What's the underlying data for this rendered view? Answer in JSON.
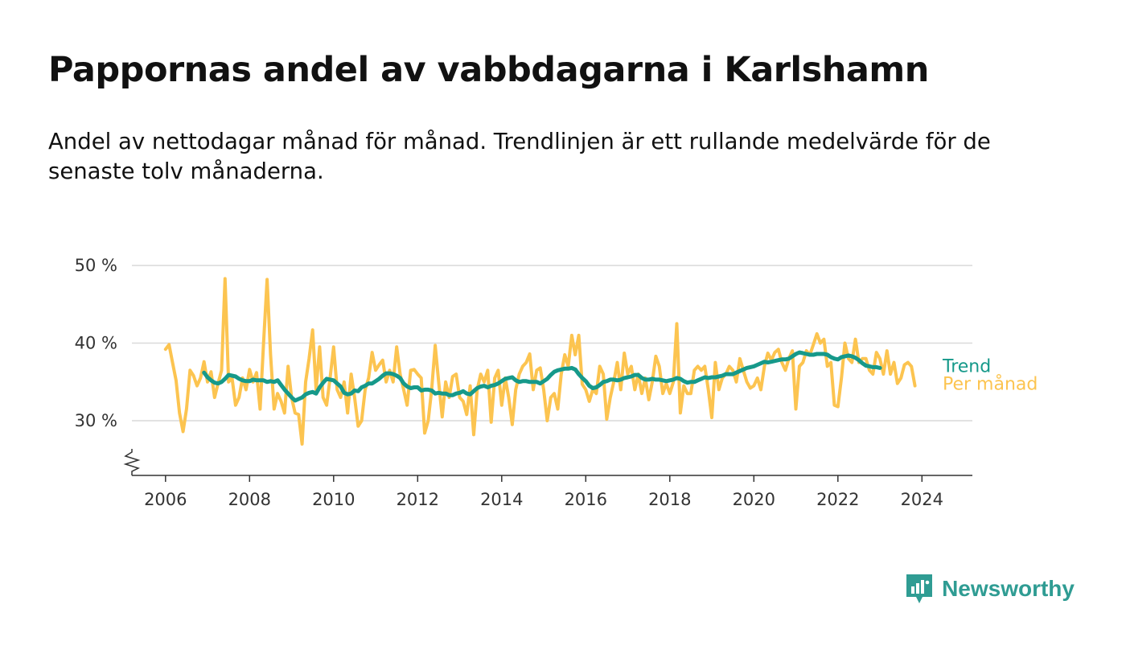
{
  "title": "Pappornas andel av vabbdagarna i Karlshamn",
  "subtitle": "Andel av nettodagar månad för månad. Trendlinjen är ett rullande medelvärde för de senaste tolv månaderna.",
  "brand": {
    "name": "Newsworthy",
    "icon": "newsworthy-logo-icon",
    "color": "#2f9c93"
  },
  "colors": {
    "trend": "#16998a",
    "monthly": "#fcc450",
    "grid": "#d9d9d9",
    "axis": "#333333"
  },
  "chart_data": {
    "type": "line",
    "title": "Pappornas andel av vabbdagarna i Karlshamn",
    "xlabel": "",
    "ylabel": "",
    "xlim": [
      2005.2,
      2025.2
    ],
    "ylim": [
      23,
      50
    ],
    "y_axis_broken": true,
    "x_ticks": [
      2006,
      2008,
      2010,
      2012,
      2014,
      2016,
      2018,
      2020,
      2022,
      2024
    ],
    "y_ticks": [
      {
        "value": 30,
        "label": "30 %"
      },
      {
        "value": 40,
        "label": "40 %"
      },
      {
        "value": 50,
        "label": "50 %"
      }
    ],
    "series": [
      {
        "name": "Per månad",
        "color": "#fcc450",
        "x_start": 2006.0,
        "x_step": 0.083333,
        "values": [
          39.2,
          39.8,
          37.5,
          35.2,
          31.0,
          28.6,
          31.5,
          36.5,
          35.8,
          34.5,
          35.5,
          37.6,
          35.0,
          36.3,
          33.0,
          34.8,
          36.5,
          48.3,
          35.0,
          35.5,
          32.0,
          33.0,
          35.5,
          34.0,
          36.6,
          35.0,
          36.2,
          31.5,
          40.0,
          48.2,
          38.5,
          31.5,
          33.5,
          32.5,
          31.0,
          37.0,
          33.0,
          31.0,
          30.8,
          27.0,
          35.0,
          38.0,
          41.7,
          34.0,
          39.5,
          33.0,
          32.0,
          35.5,
          39.5,
          34.0,
          33.0,
          35.0,
          31.0,
          36.0,
          33.0,
          29.3,
          30.0,
          34.0,
          35.5,
          38.8,
          36.5,
          37.2,
          37.8,
          35.0,
          36.5,
          35.0,
          39.5,
          36.0,
          34.0,
          32.0,
          36.5,
          36.6,
          36.0,
          35.5,
          28.4,
          30.0,
          34.0,
          39.7,
          35.0,
          30.5,
          35.0,
          33.0,
          35.7,
          36.0,
          33.0,
          32.5,
          30.8,
          34.5,
          28.2,
          34.0,
          36.0,
          35.0,
          36.5,
          29.8,
          35.5,
          36.5,
          32.0,
          35.5,
          33.0,
          29.5,
          34.0,
          36.0,
          37.0,
          37.5,
          38.6,
          34.0,
          36.5,
          36.8,
          34.0,
          30.0,
          33.0,
          33.5,
          31.5,
          36.0,
          38.5,
          37.0,
          41.0,
          38.5,
          41.0,
          34.7,
          34.0,
          32.5,
          34.0,
          33.5,
          37.0,
          36.0,
          30.2,
          33.0,
          35.0,
          37.5,
          34.0,
          38.7,
          36.0,
          37.0,
          34.0,
          36.0,
          33.5,
          35.5,
          32.7,
          35.0,
          38.3,
          37.0,
          33.5,
          34.8,
          33.5,
          35.0,
          42.5,
          31.0,
          34.5,
          33.5,
          33.5,
          36.5,
          37.0,
          36.5,
          37.0,
          34.0,
          30.4,
          37.5,
          34.0,
          35.5,
          36.0,
          37.0,
          36.5,
          35.0,
          38.0,
          36.5,
          35.0,
          34.2,
          34.5,
          35.5,
          34.0,
          37.0,
          38.7,
          37.8,
          38.8,
          39.2,
          37.5,
          36.5,
          38.0,
          39.0,
          31.5,
          37.0,
          37.5,
          39.0,
          38.5,
          39.8,
          41.2,
          40.0,
          40.5,
          37.0,
          37.5,
          32.0,
          31.8,
          35.5,
          40.0,
          38.0,
          37.5,
          40.5,
          37.5,
          38.0,
          38.0,
          36.5,
          36.0,
          38.8,
          38.0,
          36.0,
          39.0,
          36.0,
          37.5,
          34.8,
          35.5,
          37.2,
          37.5,
          37.0,
          34.5
        ]
      },
      {
        "name": "Trend",
        "color": "#16998a",
        "x_start": 2006.917,
        "x_step": 0.083333,
        "values": [
          36.2,
          35.6,
          35.2,
          34.9,
          34.8,
          35.0,
          35.4,
          35.9,
          35.8,
          35.7,
          35.4,
          35.2,
          35.1,
          35.1,
          35.3,
          35.2,
          35.2,
          35.2,
          35.0,
          35.1,
          35.0,
          35.2,
          34.6,
          34.0,
          33.5,
          33.0,
          32.6,
          32.8,
          33.0,
          33.4,
          33.6,
          33.7,
          33.5,
          34.3,
          34.9,
          35.4,
          35.3,
          35.2,
          34.8,
          34.4,
          33.6,
          33.4,
          33.5,
          33.9,
          33.8,
          34.3,
          34.5,
          34.8,
          34.8,
          35.1,
          35.4,
          35.8,
          36.1,
          36.1,
          36.0,
          35.8,
          35.5,
          34.8,
          34.4,
          34.2,
          34.3,
          34.3,
          33.9,
          34.0,
          34.0,
          33.9,
          33.5,
          33.6,
          33.5,
          33.5,
          33.3,
          33.3,
          33.5,
          33.6,
          33.8,
          33.5,
          33.4,
          33.8,
          34.2,
          34.4,
          34.5,
          34.3,
          34.5,
          34.6,
          34.8,
          35.1,
          35.4,
          35.5,
          35.6,
          35.2,
          35.0,
          35.1,
          35.1,
          35.0,
          35.0,
          35.0,
          34.8,
          35.1,
          35.4,
          35.9,
          36.3,
          36.5,
          36.6,
          36.7,
          36.7,
          36.8,
          36.6,
          36.0,
          35.5,
          35.1,
          34.5,
          34.2,
          34.3,
          34.6,
          35.0,
          35.1,
          35.3,
          35.3,
          35.2,
          35.3,
          35.5,
          35.6,
          35.7,
          35.9,
          35.9,
          35.5,
          35.3,
          35.3,
          35.4,
          35.3,
          35.3,
          35.2,
          35.1,
          35.2,
          35.3,
          35.5,
          35.4,
          35.1,
          34.9,
          35.0,
          35.0,
          35.2,
          35.4,
          35.6,
          35.5,
          35.6,
          35.6,
          35.7,
          35.8,
          36.0,
          36.0,
          36.0,
          36.2,
          36.4,
          36.6,
          36.8,
          36.9,
          37.0,
          37.2,
          37.4,
          37.6,
          37.5,
          37.6,
          37.7,
          37.8,
          37.9,
          37.9,
          38.0,
          38.3,
          38.6,
          38.8,
          38.7,
          38.6,
          38.5,
          38.5,
          38.6,
          38.6,
          38.6,
          38.5,
          38.2,
          38.0,
          37.9,
          38.2,
          38.3,
          38.4,
          38.3,
          38.1,
          37.8,
          37.4,
          37.1,
          37.0,
          36.9,
          36.9,
          36.8
        ]
      }
    ],
    "legend": [
      {
        "name": "Trend",
        "color": "#16998a",
        "placement": "line-end"
      },
      {
        "name": "Per månad",
        "color": "#fcc450",
        "placement": "line-end"
      }
    ]
  }
}
